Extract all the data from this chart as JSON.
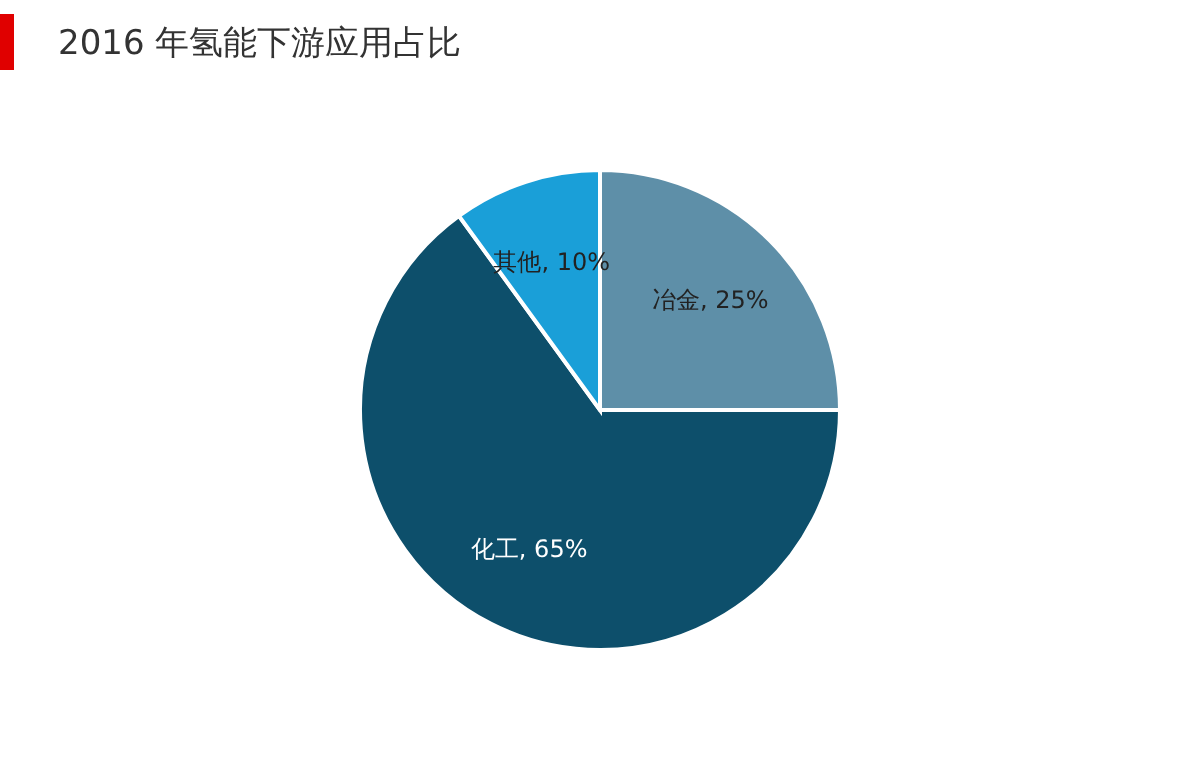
{
  "chart_data": {
    "type": "pie",
    "title": "2016 年氢能下游应用占比",
    "categories": [
      "冶金",
      "化工",
      "其他"
    ],
    "values": [
      25,
      65,
      10
    ],
    "colors": [
      "#5e8fa8",
      "#0d4f6b",
      "#1a9fd8"
    ],
    "value_labels": [
      ", 25%",
      ", 65%",
      ", 10%"
    ]
  }
}
